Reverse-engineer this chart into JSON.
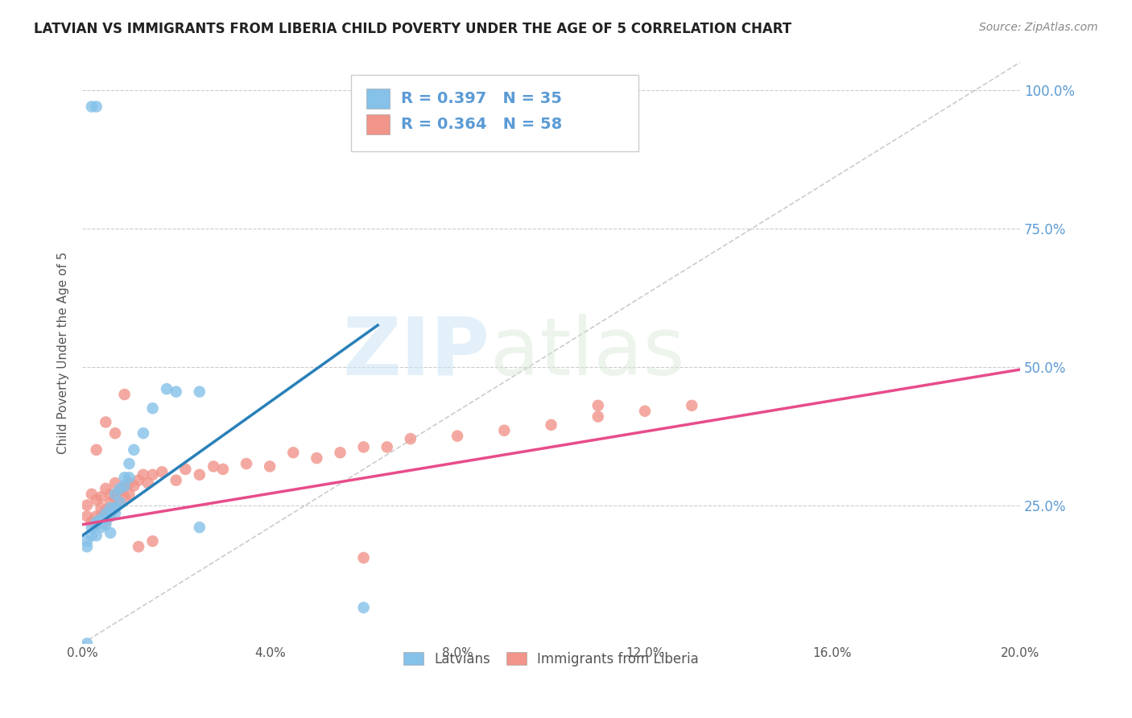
{
  "title": "LATVIAN VS IMMIGRANTS FROM LIBERIA CHILD POVERTY UNDER THE AGE OF 5 CORRELATION CHART",
  "source": "Source: ZipAtlas.com",
  "ylabel": "Child Poverty Under the Age of 5",
  "legend_latvians": "Latvians",
  "legend_liberia": "Immigrants from Liberia",
  "R_latvian": 0.397,
  "N_latvian": 35,
  "R_liberia": 0.364,
  "N_liberia": 58,
  "color_latvian": "#85c1e9",
  "color_liberia": "#f1948a",
  "color_latvian_line": "#2980b9",
  "color_liberia_line": "#e74c8b",
  "color_trend_dashed": "#aaaaaa",
  "watermark_zip": "ZIP",
  "watermark_atlas": "atlas",
  "xmin": 0.0,
  "xmax": 0.2,
  "ymin": 0.0,
  "ymax": 1.05,
  "ytick_vals": [
    0.25,
    0.5,
    0.75,
    1.0
  ],
  "ytick_labels": [
    "25.0%",
    "50.0%",
    "75.0%",
    "100.0%"
  ],
  "xtick_vals": [
    0.0,
    0.04,
    0.08,
    0.12,
    0.16,
    0.2
  ],
  "xtick_labels": [
    "0.0%",
    "4.0%",
    "8.0%",
    "12.0%",
    "16.0%",
    "20.0%"
  ],
  "background_color": "#ffffff",
  "lat_x": [
    0.001,
    0.001,
    0.002,
    0.002,
    0.003,
    0.003,
    0.003,
    0.004,
    0.004,
    0.005,
    0.005,
    0.005,
    0.006,
    0.006,
    0.006,
    0.007,
    0.007,
    0.007,
    0.008,
    0.008,
    0.009,
    0.009,
    0.01,
    0.01,
    0.011,
    0.013,
    0.015,
    0.018,
    0.02,
    0.025,
    0.001,
    0.025,
    0.06,
    0.002,
    0.003
  ],
  "lat_y": [
    0.175,
    0.185,
    0.195,
    0.21,
    0.22,
    0.195,
    0.215,
    0.21,
    0.225,
    0.215,
    0.225,
    0.235,
    0.23,
    0.245,
    0.2,
    0.235,
    0.245,
    0.27,
    0.255,
    0.28,
    0.285,
    0.3,
    0.3,
    0.325,
    0.35,
    0.38,
    0.425,
    0.46,
    0.455,
    0.455,
    0.0,
    0.21,
    0.065,
    0.97,
    0.97
  ],
  "lib_x": [
    0.001,
    0.001,
    0.002,
    0.002,
    0.003,
    0.003,
    0.003,
    0.004,
    0.004,
    0.004,
    0.005,
    0.005,
    0.005,
    0.006,
    0.006,
    0.006,
    0.007,
    0.007,
    0.007,
    0.008,
    0.008,
    0.009,
    0.009,
    0.01,
    0.01,
    0.011,
    0.012,
    0.013,
    0.014,
    0.015,
    0.017,
    0.02,
    0.022,
    0.025,
    0.028,
    0.03,
    0.035,
    0.04,
    0.045,
    0.05,
    0.055,
    0.06,
    0.065,
    0.07,
    0.08,
    0.09,
    0.1,
    0.11,
    0.12,
    0.13,
    0.003,
    0.005,
    0.007,
    0.009,
    0.012,
    0.015,
    0.06,
    0.11
  ],
  "lib_y": [
    0.23,
    0.25,
    0.22,
    0.27,
    0.215,
    0.23,
    0.26,
    0.23,
    0.245,
    0.265,
    0.22,
    0.24,
    0.28,
    0.23,
    0.255,
    0.27,
    0.245,
    0.265,
    0.29,
    0.255,
    0.275,
    0.265,
    0.285,
    0.27,
    0.29,
    0.285,
    0.295,
    0.305,
    0.29,
    0.305,
    0.31,
    0.295,
    0.315,
    0.305,
    0.32,
    0.315,
    0.325,
    0.32,
    0.345,
    0.335,
    0.345,
    0.355,
    0.355,
    0.37,
    0.375,
    0.385,
    0.395,
    0.41,
    0.42,
    0.43,
    0.35,
    0.4,
    0.38,
    0.45,
    0.175,
    0.185,
    0.155,
    0.43
  ],
  "blue_line_x0": 0.0,
  "blue_line_y0": 0.195,
  "blue_line_x1": 0.063,
  "blue_line_y1": 0.575,
  "pink_line_x0": 0.0,
  "pink_line_y0": 0.215,
  "pink_line_x1": 0.2,
  "pink_line_y1": 0.495
}
